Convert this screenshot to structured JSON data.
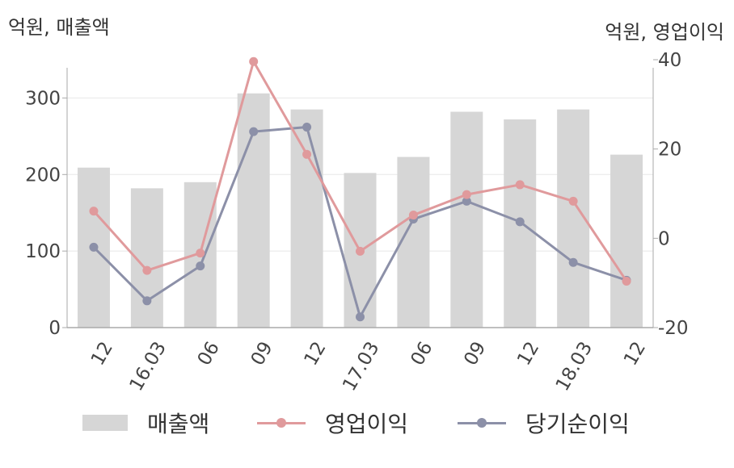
{
  "left_axis_title": "억원, 매출액",
  "right_axis_title": "억원, 영업이익",
  "colors": {
    "bar": "#d6d6d6",
    "op_profit": "#e09a9c",
    "net_profit": "#8c90a8",
    "axis": "#aaaaaa",
    "grid": "#e8e8e8",
    "text": "#444444"
  },
  "chart_data": {
    "type": "bar",
    "categories": [
      "12",
      "16.03",
      "06",
      "09",
      "12",
      "17.03",
      "06",
      "09",
      "12",
      "18.03",
      "12"
    ],
    "left_axis": {
      "ylim": [
        0,
        350
      ],
      "ticks": [
        0,
        100,
        200,
        300
      ]
    },
    "right_axis": {
      "ylim": [
        -20,
        40
      ],
      "ticks": [
        -20,
        0,
        20,
        40
      ]
    },
    "series": [
      {
        "name": "매출액",
        "type": "bar",
        "axis": "left",
        "values": [
          209,
          182,
          190,
          306,
          285,
          202,
          223,
          282,
          272,
          285,
          226
        ]
      },
      {
        "name": "영업이익",
        "type": "line",
        "axis": "right",
        "values": [
          6.1,
          -7.2,
          -3.3,
          39.6,
          18.8,
          -2.9,
          5.2,
          9.8,
          12.0,
          8.3,
          -9.6
        ]
      },
      {
        "name": "당기순이익",
        "type": "line",
        "axis": "right",
        "values": [
          -2.0,
          -14.0,
          -6.2,
          23.9,
          24.9,
          -17.6,
          4.3,
          8.3,
          3.7,
          -5.4,
          -9.4
        ]
      }
    ]
  }
}
